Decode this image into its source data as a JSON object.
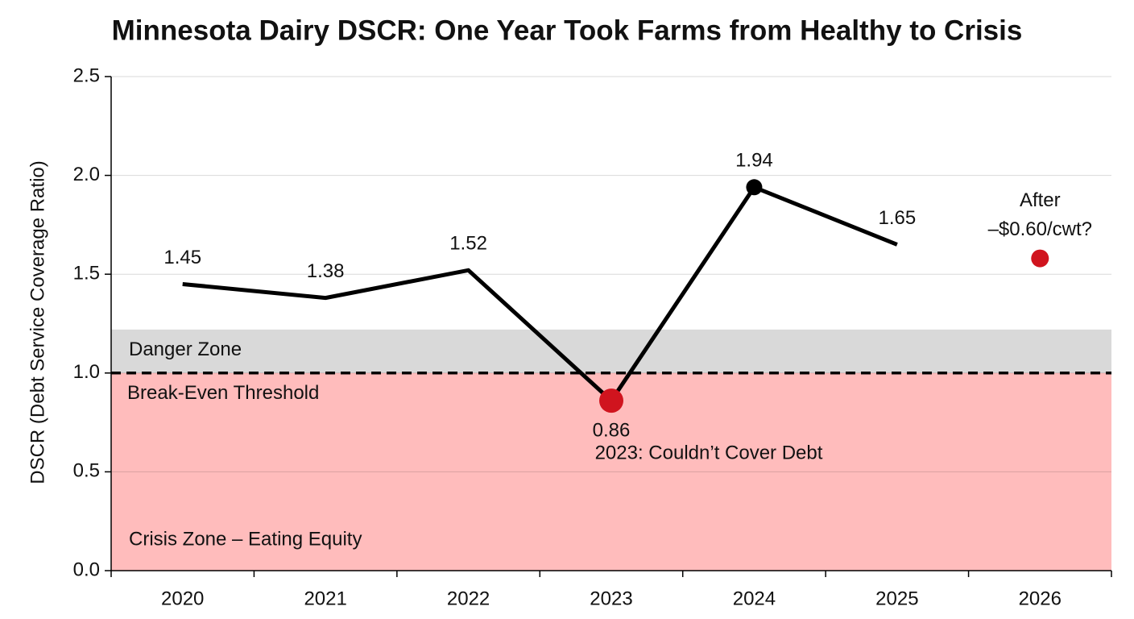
{
  "chart_data": {
    "type": "line",
    "title": "Minnesota Dairy DSCR: One Year Took Farms from Healthy to Crisis",
    "y_label": "DSCR (Debt Service Coverage Ratio)",
    "categories": [
      "2020",
      "2021",
      "2022",
      "2023",
      "2024",
      "2025",
      "2026"
    ],
    "series": [
      {
        "values": [
          1.45,
          1.38,
          1.52,
          0.86,
          1.94,
          1.65,
          null
        ],
        "color": "#000000",
        "marker_colors": [
          null,
          null,
          null,
          "#d0141e",
          "#000000",
          null,
          null
        ]
      }
    ],
    "projection": {
      "category": "2026",
      "value": 1.58,
      "color": "#d0141e",
      "label": [
        "After",
        "–$0.60/cwt?"
      ]
    },
    "ylim": [
      0,
      2.5
    ],
    "yticks": [
      {
        "value": 0,
        "label": "0.0"
      },
      0.5,
      {
        "value": 1,
        "label": "1.0"
      },
      1.5,
      {
        "value": 2,
        "label": "2.0"
      },
      2.5
    ],
    "grid": true,
    "zones": [
      {
        "label": "Danger Zone",
        "from": 1,
        "to": 1.22,
        "color": "#d9d9d9"
      },
      {
        "label": "Crisis Zone – Eating Equity",
        "from": 0,
        "to": 1,
        "color": "#ffbcbc"
      }
    ],
    "threshold": {
      "label": "Break-Even Threshold",
      "value": 1
    },
    "annotation": "2023: Couldn’t Cover Debt"
  }
}
